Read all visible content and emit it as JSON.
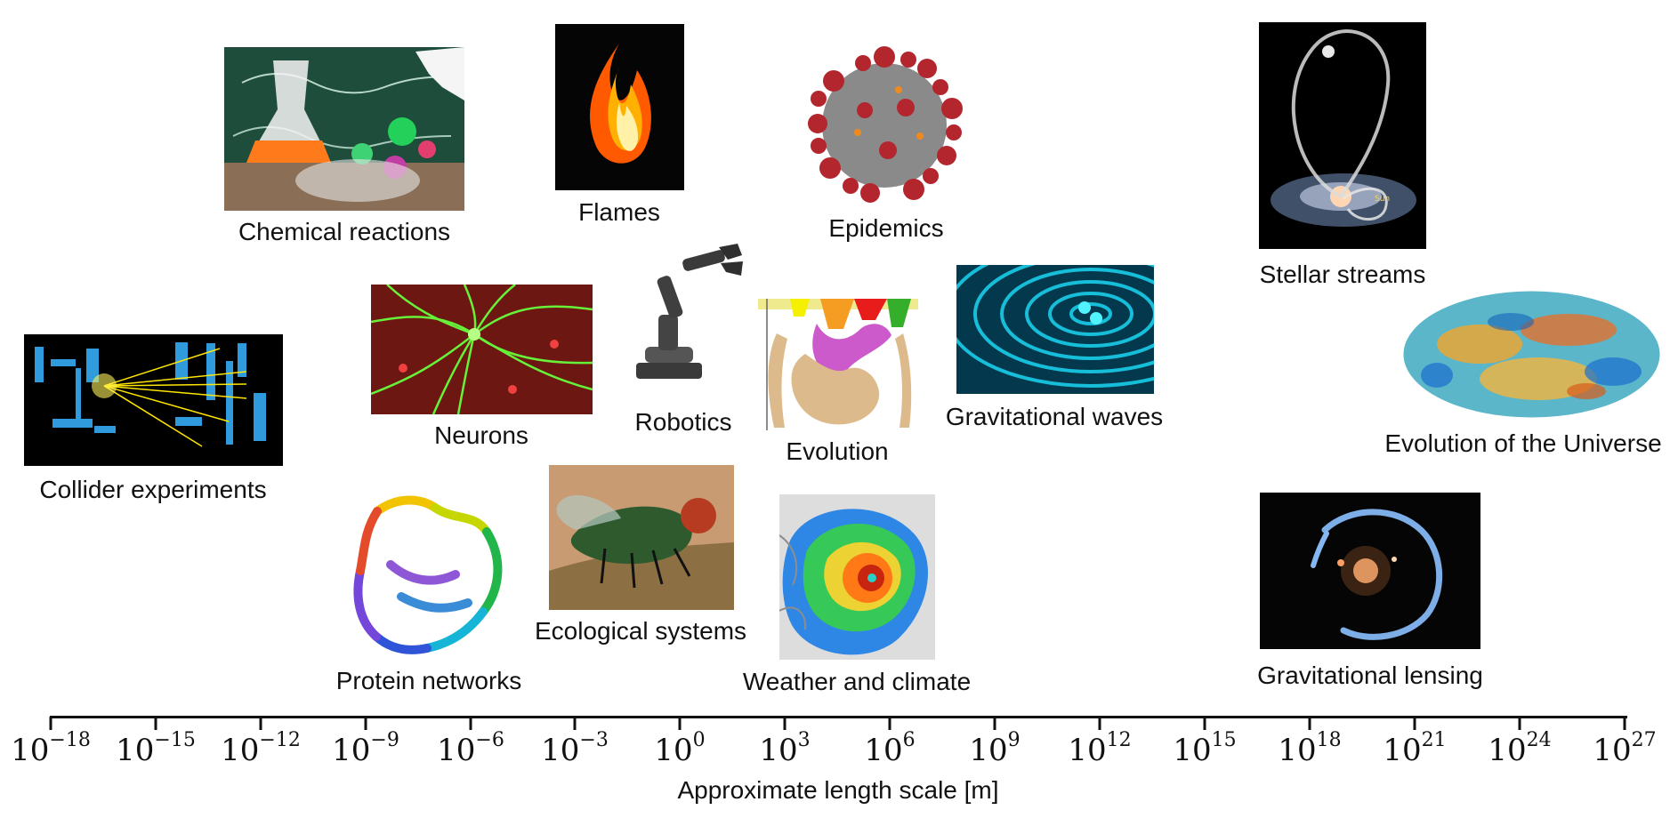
{
  "items": {
    "chemical_reactions": "Chemical reactions",
    "flames": "Flames",
    "epidemics": "Epidemics",
    "stellar_streams": "Stellar streams",
    "neurons": "Neurons",
    "robotics": "Robotics",
    "evolution": "Evolution",
    "gravitational_waves": "Gravitational waves",
    "collider_experiments": "Collider experiments",
    "evolution_universe": "Evolution of the Universe",
    "ecological_systems": "Ecological systems",
    "protein_networks": "Protein networks",
    "weather_climate": "Weather and climate",
    "gravitational_lensing": "Gravitational lensing"
  },
  "axis": {
    "title": "Approximate length scale [m]",
    "base": "10",
    "exponents": [
      "−18",
      "−15",
      "−12",
      "−9",
      "−6",
      "−3",
      "0",
      "3",
      "6",
      "9",
      "12",
      "15",
      "18",
      "21",
      "24",
      "27"
    ]
  },
  "colors": {
    "axis": "#111111",
    "text": "#111111"
  }
}
